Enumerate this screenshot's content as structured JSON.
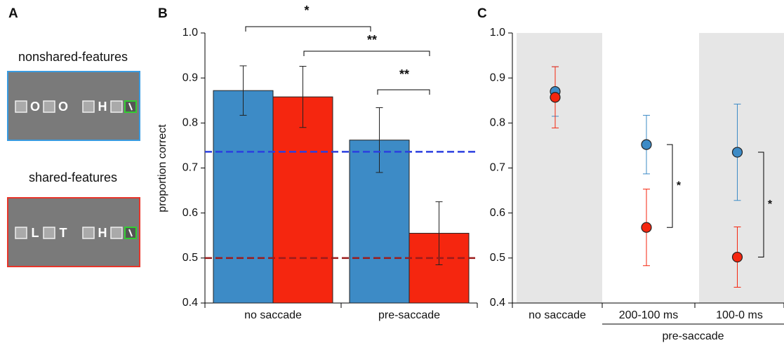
{
  "panel_a": {
    "panel_label": "A",
    "conditions": [
      {
        "name": "nonshared-features",
        "letters": [
          "O",
          "O",
          "H"
        ]
      },
      {
        "name": "shared-features",
        "letters": [
          "L",
          "T",
          "H"
        ]
      }
    ]
  },
  "chart_data": [
    {
      "type": "bar",
      "panel_label": "B",
      "y_label": "proportion correct",
      "categories": [
        "no saccade",
        "pre-saccade"
      ],
      "series": [
        {
          "color": "#3d8bc6",
          "values": [
            0.872,
            0.762
          ],
          "errors": [
            0.055,
            0.072
          ]
        },
        {
          "color": "#f5260f",
          "values": [
            0.858,
            0.555
          ],
          "errors": [
            0.068,
            0.07
          ]
        }
      ],
      "reference_lines": [
        {
          "value": 0.736,
          "color": "#2b3fe0"
        },
        {
          "value": 0.5,
          "color": "#9b1b1b"
        }
      ],
      "annotations": [
        "*",
        "**",
        "**"
      ],
      "ylim": [
        0.4,
        1.0
      ],
      "yticks": [
        0.4,
        0.5,
        0.6,
        0.7,
        0.8,
        0.9,
        {
          "value": 1.0,
          "label": "1.0"
        }
      ]
    },
    {
      "type": "dot",
      "panel_label": "C",
      "categories": [
        "no saccade",
        "200-100 ms",
        "100-0 ms"
      ],
      "group_label": "pre-saccade",
      "series": [
        {
          "color": "#3d8bc6",
          "values": [
            0.87,
            0.752,
            0.735
          ],
          "errors": [
            0.055,
            0.065,
            0.107
          ]
        },
        {
          "color": "#f5260f",
          "values": [
            0.857,
            0.568,
            0.502
          ],
          "errors": [
            0.068,
            0.085,
            0.067
          ]
        }
      ],
      "shaded": [
        0,
        2
      ],
      "annotations": [
        "*",
        "*"
      ],
      "ylim": [
        0.4,
        1.0
      ],
      "yticks": [
        0.4,
        0.5,
        0.6,
        0.7,
        0.8,
        0.9,
        {
          "value": 1.0,
          "label": "1.0"
        }
      ]
    }
  ]
}
